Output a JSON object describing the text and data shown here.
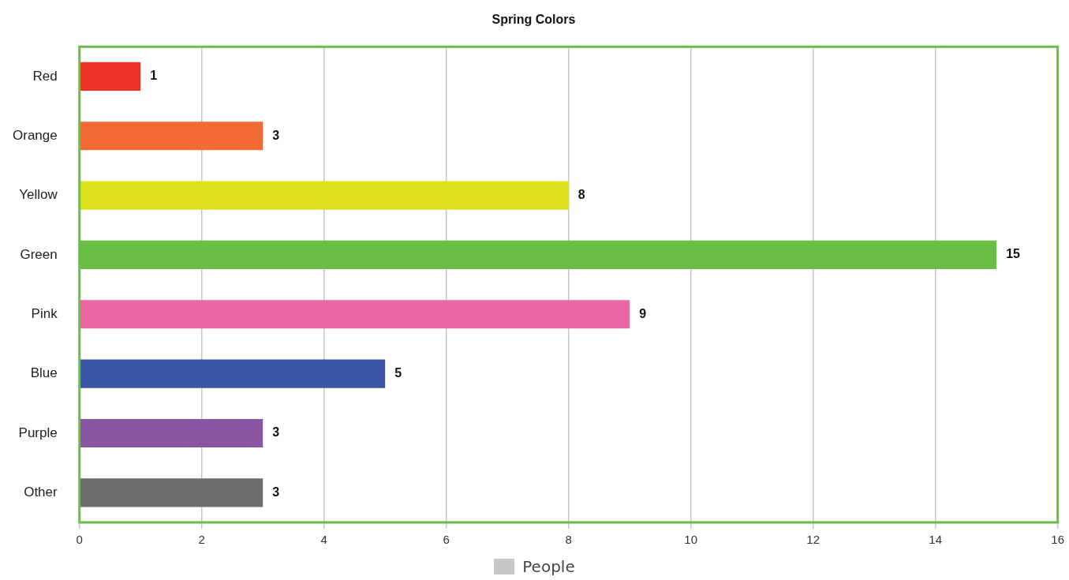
{
  "chart_data": {
    "type": "bar",
    "orientation": "horizontal",
    "title": "Spring Colors",
    "categories": [
      "Red",
      "Orange",
      "Yellow",
      "Green",
      "Pink",
      "Blue",
      "Purple",
      "Other"
    ],
    "series": [
      {
        "name": "People",
        "color": "#c8c8c8",
        "colors": [
          "#ee3124",
          "#f26b35",
          "#dde11e",
          "#6abd45",
          "#ec67a6",
          "#3a55a5",
          "#8855a0",
          "#6d6e70"
        ],
        "values": [
          1,
          3,
          8,
          15,
          9,
          5,
          3,
          3
        ]
      }
    ],
    "xlim": [
      0,
      16
    ],
    "xticks": [
      0,
      2,
      4,
      6,
      8,
      10,
      12,
      14,
      16
    ],
    "grid": "x",
    "legend": "bottom",
    "data_labels": true
  }
}
